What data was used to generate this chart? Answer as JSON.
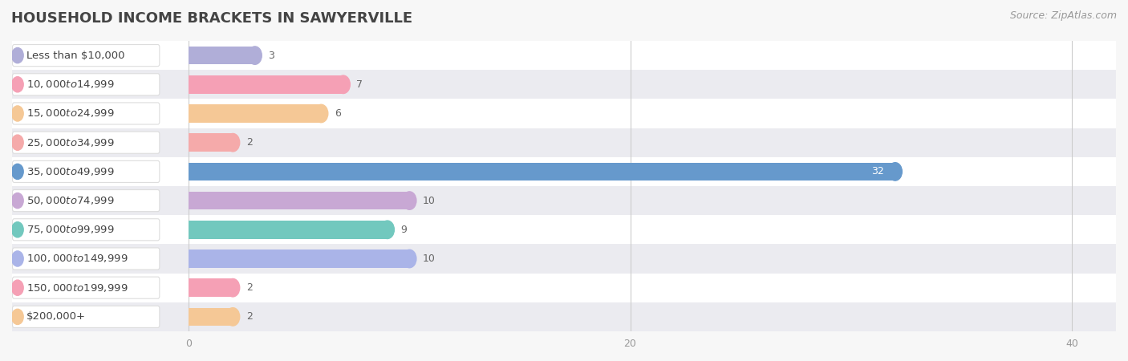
{
  "title": "HOUSEHOLD INCOME BRACKETS IN SAWYERVILLE",
  "source": "Source: ZipAtlas.com",
  "categories": [
    "Less than $10,000",
    "$10,000 to $14,999",
    "$15,000 to $24,999",
    "$25,000 to $34,999",
    "$35,000 to $49,999",
    "$50,000 to $74,999",
    "$75,000 to $99,999",
    "$100,000 to $149,999",
    "$150,000 to $199,999",
    "$200,000+"
  ],
  "values": [
    3,
    7,
    6,
    2,
    32,
    10,
    9,
    10,
    2,
    2
  ],
  "bar_colors": [
    "#b0aed8",
    "#f5a0b5",
    "#f5c896",
    "#f5aaaa",
    "#6699cc",
    "#c8a8d4",
    "#72c8be",
    "#aab4e8",
    "#f5a0b5",
    "#f5c896"
  ],
  "xlim_min": -8,
  "xlim_max": 42,
  "xticks": [
    0,
    20,
    40
  ],
  "row_colors": [
    "#ffffff",
    "#ebebf0"
  ],
  "title_color": "#444444",
  "source_color": "#999999",
  "label_text_color": "#444444",
  "value_color_inside": "#ffffff",
  "value_color_outside": "#666666",
  "grid_color": "#cccccc",
  "title_fontsize": 13,
  "source_fontsize": 9,
  "label_fontsize": 9.5,
  "value_fontsize": 9
}
